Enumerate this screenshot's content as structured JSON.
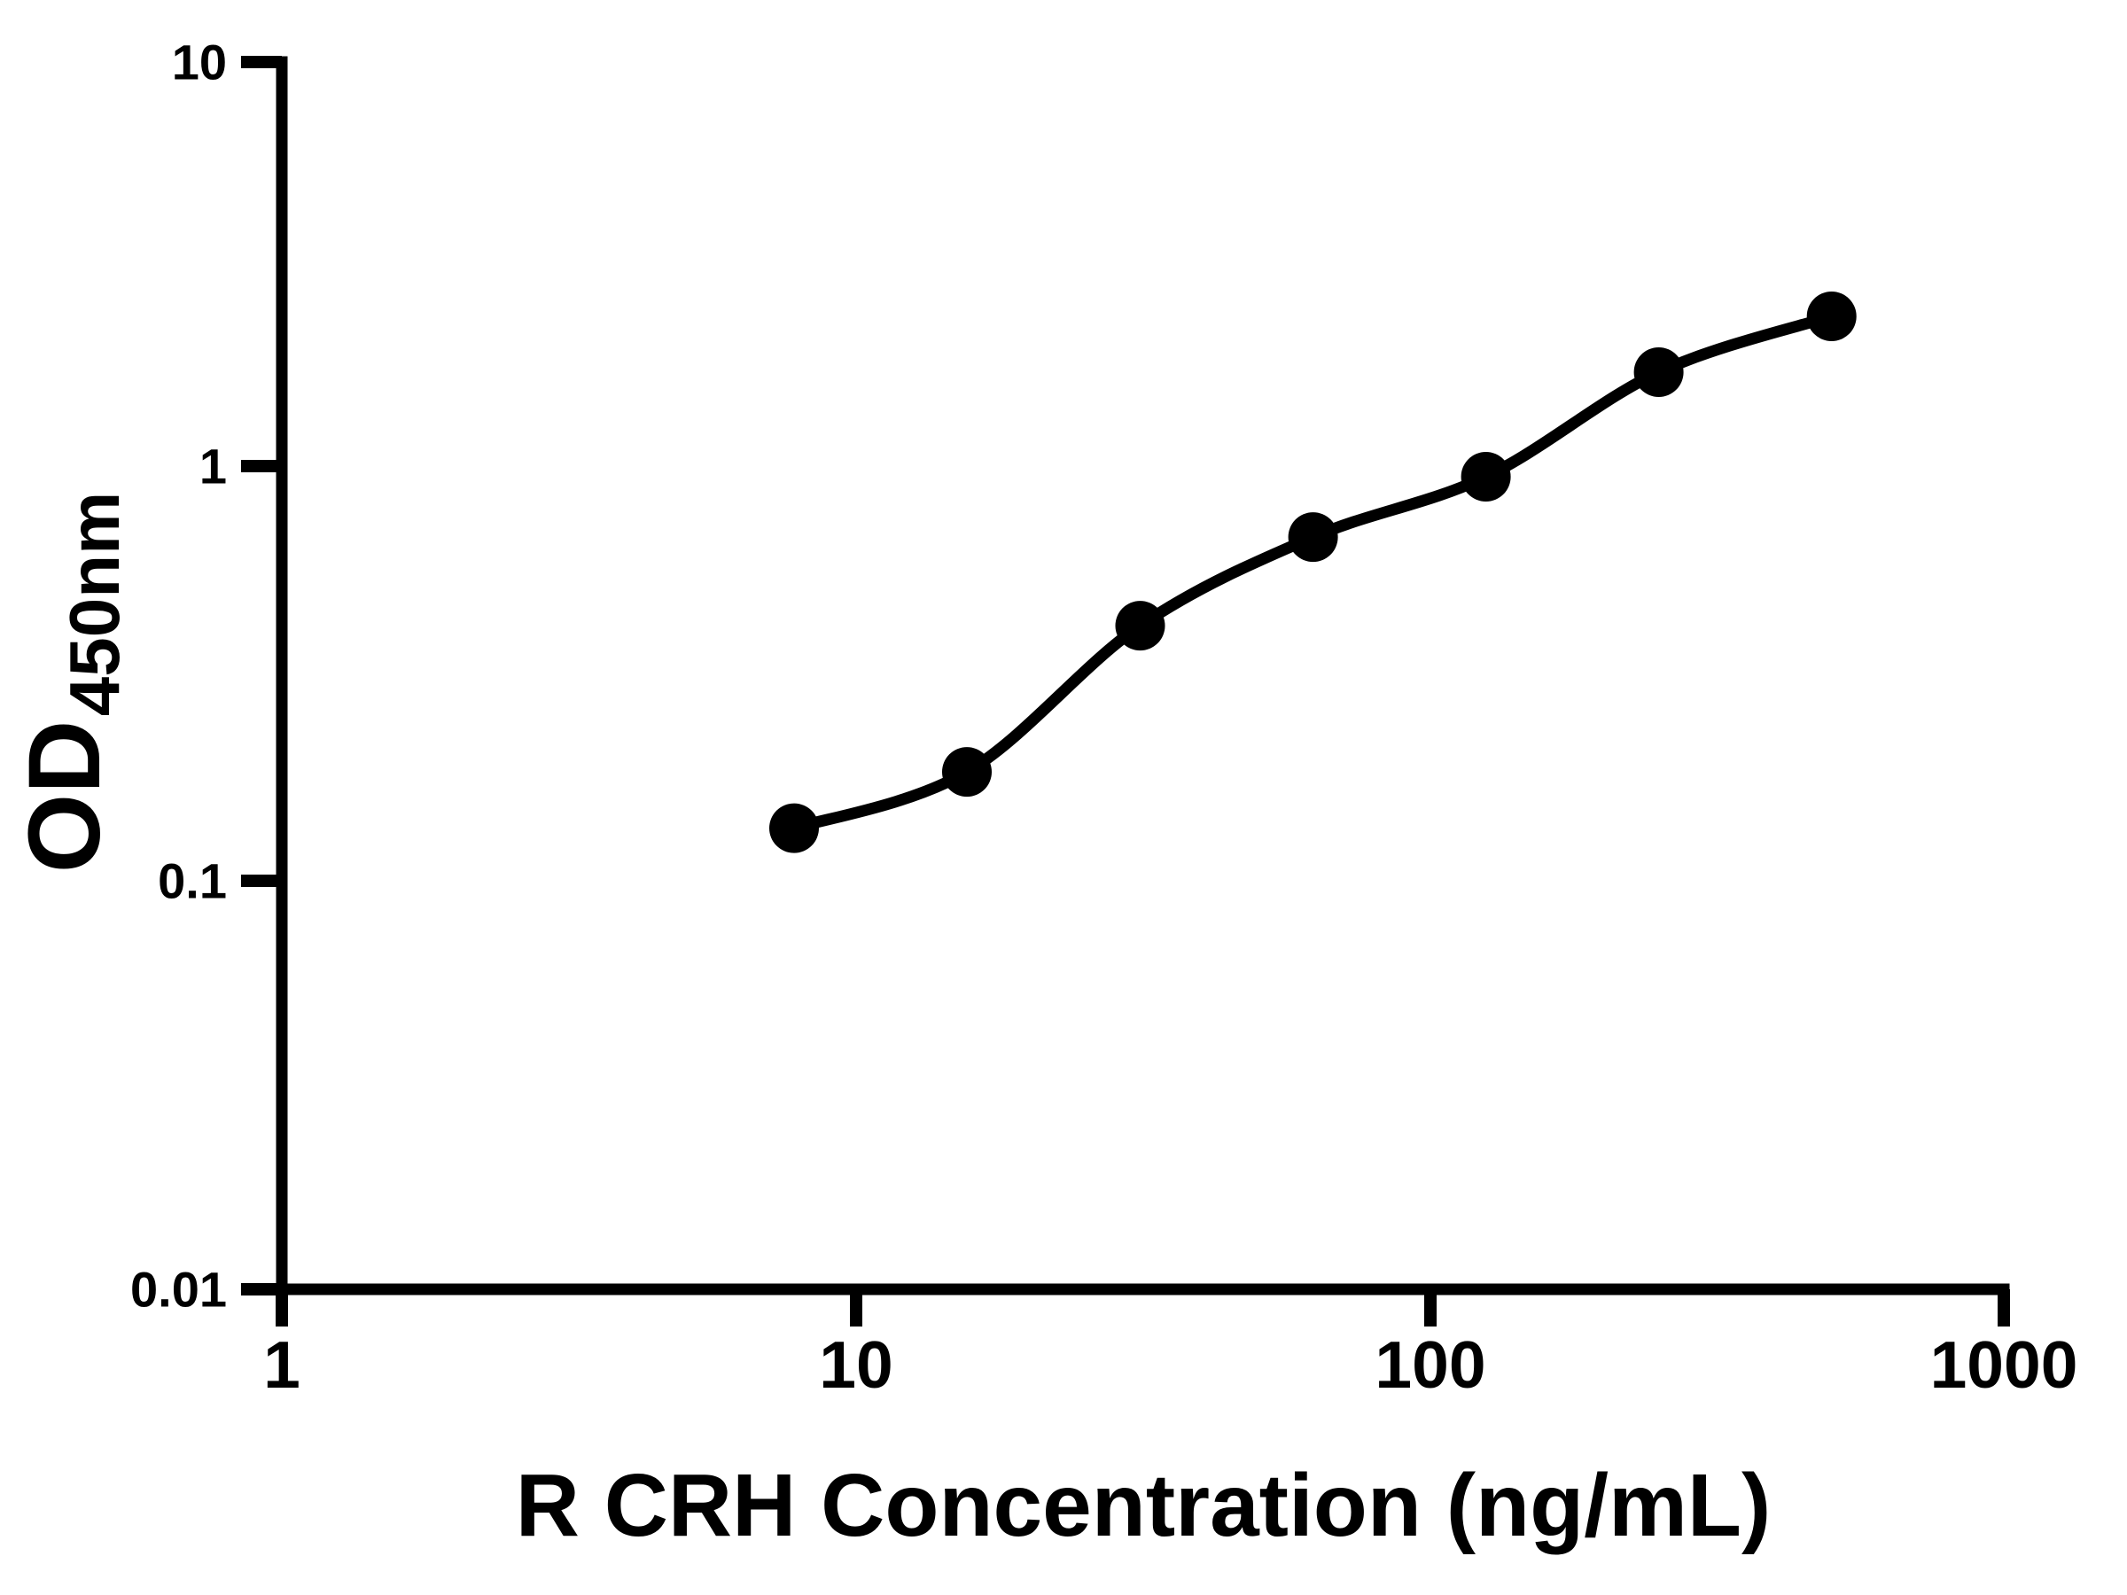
{
  "background_color": "#ffffff",
  "chart_data": {
    "type": "scatter",
    "title": "",
    "xlabel": "R CRH Concentration (ng/mL)",
    "ylabel": "OD",
    "ylabel_subscript": "450nm",
    "x_scale": "log",
    "y_scale": "log",
    "xlim": [
      1,
      1000
    ],
    "ylim": [
      0.01,
      10
    ],
    "x_tick_labels": [
      "1",
      "10",
      "100",
      "1000"
    ],
    "y_tick_labels": [
      "10",
      "1",
      "0.1",
      "0.01"
    ],
    "grid": false,
    "legend_position": "none",
    "marker_color": "#000000",
    "line_color": "#000000",
    "axis_color": "#000000",
    "series": [
      {
        "x": [
          7.8,
          15.6,
          31.25,
          62.5,
          125,
          250,
          500
        ],
        "y": [
          0.134,
          0.184,
          0.419,
          0.69,
          0.969,
          1.745,
          2.39
        ],
        "marker": "circle",
        "fit": "smooth-curve"
      }
    ]
  }
}
